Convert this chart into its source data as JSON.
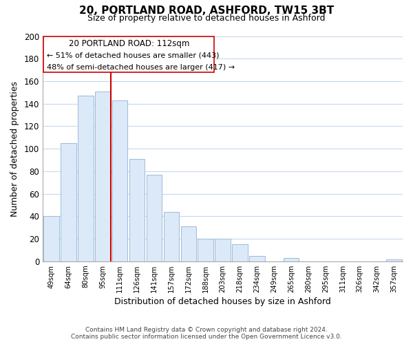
{
  "title_line1": "20, PORTLAND ROAD, ASHFORD, TW15 3BT",
  "title_line2": "Size of property relative to detached houses in Ashford",
  "xlabel": "Distribution of detached houses by size in Ashford",
  "ylabel": "Number of detached properties",
  "bar_labels": [
    "49sqm",
    "64sqm",
    "80sqm",
    "95sqm",
    "111sqm",
    "126sqm",
    "141sqm",
    "157sqm",
    "172sqm",
    "188sqm",
    "203sqm",
    "218sqm",
    "234sqm",
    "249sqm",
    "265sqm",
    "280sqm",
    "295sqm",
    "311sqm",
    "326sqm",
    "342sqm",
    "357sqm"
  ],
  "bar_values": [
    40,
    105,
    147,
    151,
    143,
    91,
    77,
    44,
    31,
    20,
    20,
    15,
    5,
    0,
    3,
    0,
    0,
    0,
    0,
    0,
    2
  ],
  "bar_color": "#dce9f8",
  "bar_edge_color": "#9bbcd8",
  "vline_index": 4,
  "vline_color": "#cc0000",
  "annotation_title": "20 PORTLAND ROAD: 112sqm",
  "annotation_line1": "← 51% of detached houses are smaller (443)",
  "annotation_line2": "48% of semi-detached houses are larger (417) →",
  "annotation_box_edge": "#cc0000",
  "ylim": [
    0,
    200
  ],
  "yticks": [
    0,
    20,
    40,
    60,
    80,
    100,
    120,
    140,
    160,
    180,
    200
  ],
  "footnote1": "Contains HM Land Registry data © Crown copyright and database right 2024.",
  "footnote2": "Contains public sector information licensed under the Open Government Licence v3.0.",
  "background_color": "#ffffff",
  "grid_color": "#c8d8ec"
}
